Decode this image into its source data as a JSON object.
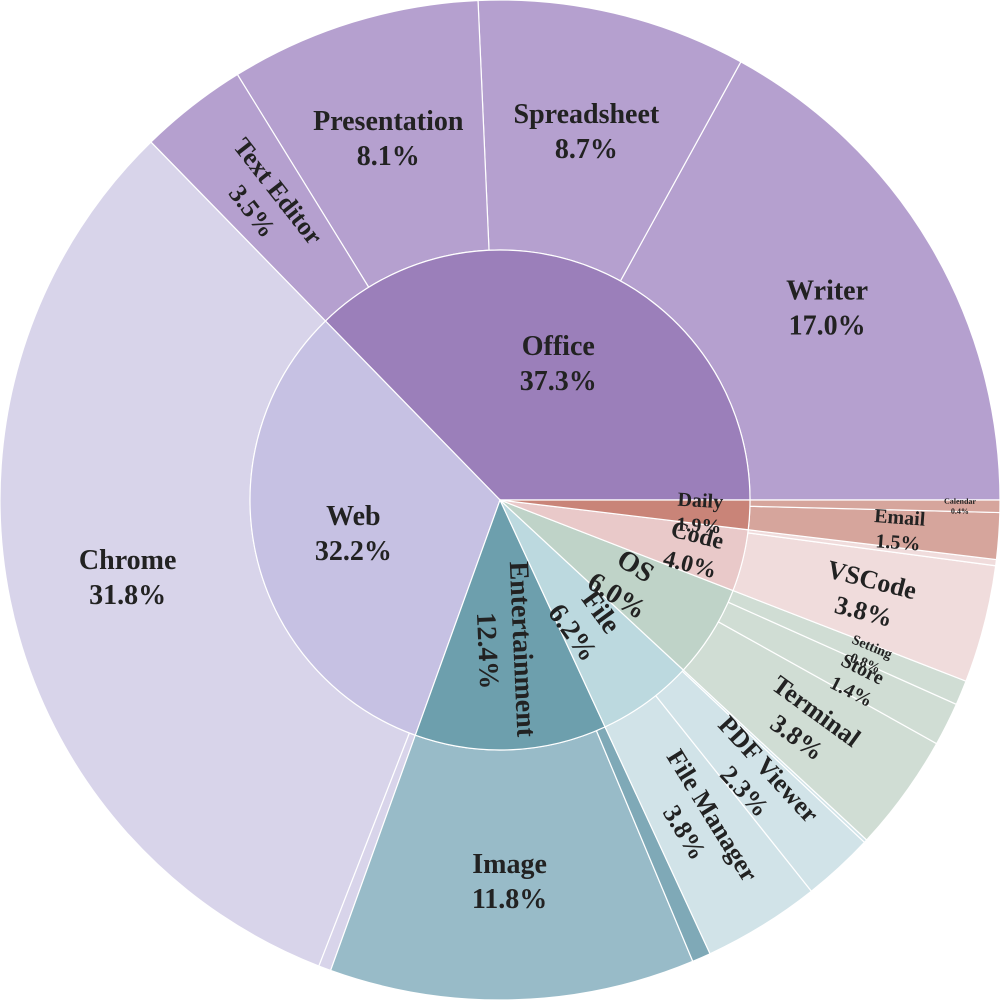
{
  "chart_data": {
    "type": "sunburst",
    "categories": [
      {
        "name": "Office",
        "pct_label": "37.3%",
        "value": 37.3,
        "color": "#9b7fba",
        "children": [
          {
            "name": "Writer",
            "pct_label": "17.0%",
            "value": 17.0,
            "color": "#b5a0cf"
          },
          {
            "name": "Spreadsheet",
            "pct_label": "8.7%",
            "value": 8.7,
            "color": "#b5a0cf"
          },
          {
            "name": "Presentation",
            "pct_label": "8.1%",
            "value": 8.1,
            "color": "#b5a0cf"
          },
          {
            "name": "Text Editor",
            "pct_label": "3.5%",
            "value": 3.5,
            "color": "#b5a0cf"
          }
        ]
      },
      {
        "name": "Web",
        "pct_label": "32.2%",
        "value": 32.2,
        "color": "#c6c1e3",
        "children": [
          {
            "name": "Chrome",
            "pct_label": "31.8%",
            "value": 31.8,
            "color": "#d8d4ea"
          },
          {
            "name": "",
            "pct_label": "",
            "value": 0.4,
            "color": "#d8d4ea"
          }
        ]
      },
      {
        "name": "Entertainment",
        "pct_label": "12.4%",
        "value": 12.4,
        "color": "#6d9fad",
        "children": [
          {
            "name": "Image",
            "pct_label": "11.8%",
            "value": 11.8,
            "color": "#98bbc8"
          },
          {
            "name": "",
            "pct_label": "",
            "value": 0.6,
            "color": "#7fa9b7"
          }
        ]
      },
      {
        "name": "File",
        "pct_label": "6.2%",
        "value": 6.2,
        "color": "#bcd9df",
        "children": [
          {
            "name": "File Manager",
            "pct_label": "3.8%",
            "value": 3.8,
            "color": "#d1e3e8"
          },
          {
            "name": "PDF Viewer",
            "pct_label": "2.3%",
            "value": 2.3,
            "color": "#d1e3e8"
          },
          {
            "name": "",
            "pct_label": "",
            "value": 0.1,
            "color": "#d1e3e8"
          }
        ]
      },
      {
        "name": "OS",
        "pct_label": "6.0%",
        "value": 6.0,
        "color": "#bfd3c8",
        "children": [
          {
            "name": "Terminal",
            "pct_label": "3.8%",
            "value": 3.8,
            "color": "#d0ddd4"
          },
          {
            "name": "Store",
            "pct_label": "1.4%",
            "value": 1.4,
            "color": "#d0ddd4"
          },
          {
            "name": "Setting",
            "pct_label": "0.8%",
            "value": 0.8,
            "color": "#d0ddd4"
          }
        ]
      },
      {
        "name": "Code",
        "pct_label": "4.0%",
        "value": 4.0,
        "color": "#e9c9c9",
        "children": [
          {
            "name": "VSCode",
            "pct_label": "3.8%",
            "value": 3.8,
            "color": "#f0dcdc"
          },
          {
            "name": "",
            "pct_label": "",
            "value": 0.2,
            "color": "#f0dcdc"
          }
        ]
      },
      {
        "name": "Daily",
        "pct_label": "1.9%",
        "value": 1.9,
        "color": "#c98478",
        "children": [
          {
            "name": "Email",
            "pct_label": "1.5%",
            "value": 1.5,
            "color": "#d6a59c"
          },
          {
            "name": "Calendar",
            "pct_label": "0.4%",
            "value": 0.4,
            "color": "#d6a59c"
          }
        ]
      }
    ]
  }
}
